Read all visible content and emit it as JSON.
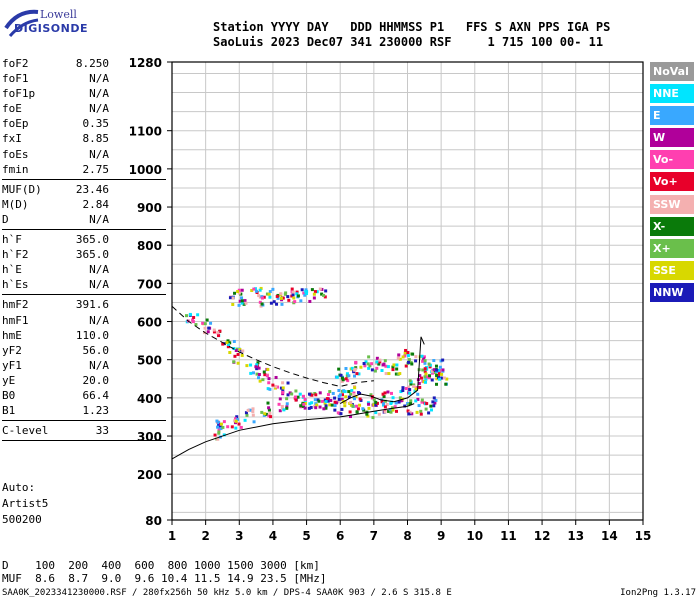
{
  "logo": {
    "line1": "Lowell",
    "line2": "DIGISONDE"
  },
  "header": {
    "line1": "Station YYYY DAY   DDD HHMMSS P1   FFS S AXN PPS IGA PS",
    "line2": "SaoLuis 2023 Dec07 341 230000 RSF     1 715 100 00- 11"
  },
  "params_groups": [
    [
      [
        "foF2",
        "8.250"
      ],
      [
        "foF1",
        "N/A"
      ],
      [
        "foF1p",
        "N/A"
      ],
      [
        "foE",
        "N/A"
      ],
      [
        "foEp",
        "0.35"
      ],
      [
        "fxI",
        "8.85"
      ],
      [
        "foEs",
        "N/A"
      ],
      [
        "fmin",
        "2.75"
      ]
    ],
    [
      [
        "MUF(D)",
        "23.46"
      ],
      [
        "M(D)",
        "2.84"
      ],
      [
        "D",
        "N/A"
      ]
    ],
    [
      [
        "h`F",
        "365.0"
      ],
      [
        "h`F2",
        "365.0"
      ],
      [
        "h`E",
        "N/A"
      ],
      [
        "h`Es",
        "N/A"
      ]
    ],
    [
      [
        "hmF2",
        "391.6"
      ],
      [
        "hmF1",
        "N/A"
      ],
      [
        "hmE",
        "110.0"
      ],
      [
        "yF2",
        "56.0"
      ],
      [
        "yF1",
        "N/A"
      ],
      [
        "yE",
        "20.0"
      ],
      [
        "B0",
        "66.4"
      ],
      [
        "B1",
        "1.23"
      ]
    ],
    [
      [
        "C-level",
        "33"
      ]
    ]
  ],
  "auto": {
    "line1": "Auto:",
    "line2": "Artist5",
    "line3": "500200"
  },
  "legend": [
    {
      "label": "NoVal",
      "color": "#9a9a9a"
    },
    {
      "label": "NNE",
      "color": "#00e5ff"
    },
    {
      "label": "E",
      "color": "#39a8ff"
    },
    {
      "label": "W",
      "color": "#b0009a"
    },
    {
      "label": "Vo-",
      "color": "#ff3fb0"
    },
    {
      "label": "Vo+",
      "color": "#e8002a"
    },
    {
      "label": "SSW",
      "color": "#f4b0b0"
    },
    {
      "label": "X-",
      "color": "#0a7a0a"
    },
    {
      "label": "X+",
      "color": "#6abf4b"
    },
    {
      "label": "SSE",
      "color": "#d8d800"
    },
    {
      "label": "NNW",
      "color": "#1b1bb8"
    }
  ],
  "bottom_table": {
    "row1": "D    100  200  400  600  800 1000 1500 3000 [km]",
    "row2": "MUF  8.6  8.7  9.0  9.6 10.4 11.5 14.9 23.5 [MHz]"
  },
  "footer": {
    "left": "SAA0K_2023341230000.RSF / 280fx256h 50 kHz 5.0 km / DPS-4 SAA0K 903 / 2.6 S 315.8 E",
    "right": "Ion2Png 1.3.17"
  },
  "chart_data": {
    "type": "scatter",
    "xlim": [
      1,
      15
    ],
    "ylim": [
      80,
      1280
    ],
    "x_ticks": [
      "1",
      "2",
      "3",
      "4",
      "5",
      "6",
      "7",
      "8",
      "9",
      "10",
      "11",
      "12",
      "13",
      "14",
      "15"
    ],
    "y_ticks": [
      "80",
      "200",
      "300",
      "400",
      "500",
      "600",
      "700",
      "800",
      "900",
      "1000",
      "1100",
      "1280"
    ],
    "grid": true,
    "series": [
      {
        "values": [
          [
            2.3,
            310
          ],
          [
            2.5,
            320
          ],
          [
            2.9,
            340
          ],
          [
            3.3,
            355
          ],
          [
            3.8,
            370
          ],
          [
            4.3,
            380
          ],
          [
            4.8,
            390
          ],
          [
            5.3,
            395
          ],
          [
            5.8,
            400
          ],
          [
            6.0,
            405
          ],
          [
            6.3,
            410
          ],
          [
            6.5,
            395
          ],
          [
            7.0,
            390
          ],
          [
            7.4,
            400
          ],
          [
            7.9,
            410
          ],
          [
            8.2,
            425
          ],
          [
            8.4,
            440
          ],
          [
            8.6,
            455
          ],
          [
            8.8,
            470
          ],
          [
            8.9,
            480
          ]
        ]
      },
      {
        "values": [
          [
            2.9,
            660
          ],
          [
            3.1,
            665
          ],
          [
            3.5,
            668
          ],
          [
            3.8,
            660
          ],
          [
            4.1,
            665
          ],
          [
            4.4,
            668
          ],
          [
            4.6,
            660
          ],
          [
            5.0,
            665
          ],
          [
            5.4,
            668
          ],
          [
            6.0,
            458
          ],
          [
            6.3,
            465
          ],
          [
            6.6,
            480
          ],
          [
            7.0,
            490
          ],
          [
            7.2,
            480
          ],
          [
            7.6,
            470
          ],
          [
            7.9,
            500
          ],
          [
            8.1,
            505
          ],
          [
            8.4,
            490
          ],
          [
            8.7,
            470
          ],
          [
            9.0,
            455
          ]
        ]
      },
      {
        "values": [
          [
            1.6,
            600
          ],
          [
            2.0,
            590
          ],
          [
            2.4,
            560
          ],
          [
            2.8,
            530
          ],
          [
            3.0,
            510
          ],
          [
            3.4,
            480
          ],
          [
            3.7,
            460
          ],
          [
            4.0,
            440
          ],
          [
            4.4,
            420
          ],
          [
            4.8,
            405
          ],
          [
            5.2,
            390
          ],
          [
            5.6,
            380
          ],
          [
            6.0,
            375
          ],
          [
            6.4,
            370
          ],
          [
            6.8,
            368
          ],
          [
            7.2,
            370
          ],
          [
            7.6,
            372
          ],
          [
            8.0,
            374
          ],
          [
            8.4,
            376
          ],
          [
            8.7,
            380
          ]
        ]
      }
    ],
    "curves": [
      {
        "style": "solid",
        "values": [
          [
            1.0,
            240
          ],
          [
            1.5,
            265
          ],
          [
            2.0,
            285
          ],
          [
            3.0,
            315
          ],
          [
            4.0,
            332
          ],
          [
            5.0,
            343
          ],
          [
            6.0,
            350
          ],
          [
            6.4,
            356
          ],
          [
            7.0,
            365
          ],
          [
            7.5,
            372
          ],
          [
            8.0,
            378
          ],
          [
            8.2,
            385
          ]
        ]
      },
      {
        "style": "solid",
        "values": [
          [
            6.0,
            385
          ],
          [
            6.3,
            400
          ],
          [
            6.6,
            410
          ],
          [
            6.9,
            405
          ],
          [
            7.2,
            395
          ],
          [
            7.6,
            390
          ],
          [
            8.0,
            400
          ],
          [
            8.3,
            420
          ],
          [
            8.4,
            560
          ],
          [
            8.5,
            540
          ]
        ]
      },
      {
        "style": "dashed",
        "values": [
          [
            1.0,
            640
          ],
          [
            1.5,
            600
          ],
          [
            2.0,
            570
          ],
          [
            2.5,
            545
          ],
          [
            3.0,
            520
          ],
          [
            3.5,
            500
          ],
          [
            4.0,
            482
          ],
          [
            4.5,
            466
          ],
          [
            5.0,
            452
          ],
          [
            5.5,
            440
          ],
          [
            6.0,
            430
          ],
          [
            6.5,
            440
          ],
          [
            7.0,
            445
          ]
        ]
      }
    ]
  }
}
